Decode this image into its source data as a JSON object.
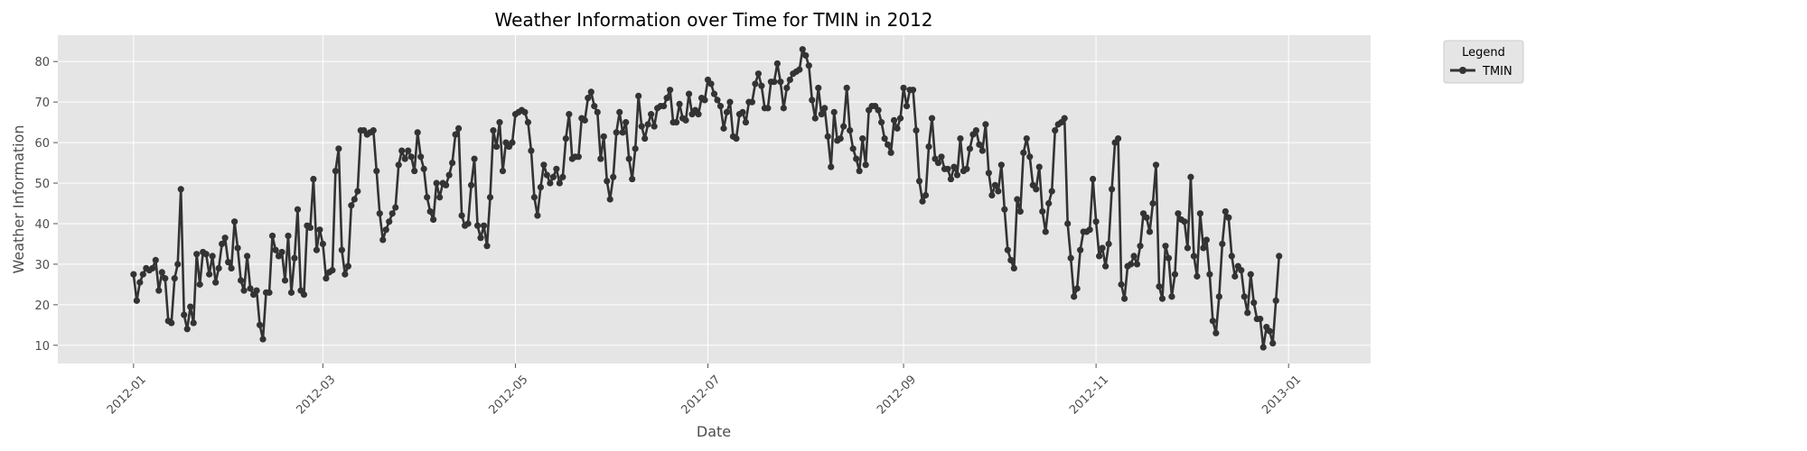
{
  "chart_data": {
    "type": "line",
    "title": "Weather Information over Time for TMIN in 2012",
    "xlabel": "Date",
    "ylabel": "Weather Information",
    "xlim": [
      "2011-12-08",
      "2013-01-27"
    ],
    "ylim": [
      5.5,
      86.5
    ],
    "grid": true,
    "legend": {
      "title": "Legend",
      "placement": "outside-top-right"
    },
    "x_ticks": [
      "2012-01",
      "2012-03",
      "2012-05",
      "2012-07",
      "2012-09",
      "2012-11",
      "2013-01"
    ],
    "y_ticks": [
      10,
      20,
      30,
      40,
      50,
      60,
      70,
      80
    ],
    "colors": {
      "line": "#333333",
      "plot_background": "#e5e5e5",
      "grid": "#ffffff",
      "text": "#4d4d4d"
    },
    "series": [
      {
        "name": "TMIN",
        "start_date": "2012-01-01",
        "interval_days": 1,
        "values": [
          27.5,
          21,
          25.5,
          27.5,
          29,
          28.5,
          29,
          31,
          23.5,
          28,
          26.5,
          16,
          15.5,
          26.5,
          30,
          48.5,
          17.5,
          14,
          19.5,
          15.5,
          32.5,
          25,
          33,
          32.5,
          27.5,
          32,
          25.5,
          29,
          35,
          36.5,
          30.5,
          29,
          40.5,
          34,
          26,
          23.5,
          32,
          24,
          22.5,
          23.5,
          15,
          11.5,
          23,
          23,
          37,
          33.5,
          32,
          33,
          26,
          37,
          23,
          31.5,
          43.5,
          23.5,
          22.5,
          39.5,
          39,
          51,
          33.5,
          38.5,
          35,
          26.5,
          28,
          28.5,
          53,
          58.5,
          33.5,
          27.5,
          29.5,
          44.5,
          46,
          48,
          63,
          63,
          62,
          62.5,
          63,
          53,
          42.5,
          36,
          38.5,
          40.5,
          42.5,
          44,
          54.5,
          58,
          56,
          58,
          56.5,
          53,
          62.5,
          56.5,
          53.5,
          46.5,
          43,
          41,
          50,
          46.5,
          50,
          49.5,
          52,
          55,
          62,
          63.5,
          42,
          39.5,
          40,
          49.5,
          56,
          39.5,
          36.5,
          39.5,
          34.5,
          46.5,
          63,
          59,
          65,
          53,
          60,
          59,
          60,
          67,
          67.5,
          68,
          67.5,
          65,
          58,
          46.5,
          42,
          49,
          54.5,
          52,
          50,
          51.5,
          53.5,
          50,
          51.5,
          61,
          67,
          56,
          56.5,
          56.5,
          66,
          65.5,
          71,
          72.5,
          69,
          67.5,
          56,
          61.5,
          50.5,
          46,
          51.5,
          62.5,
          67.5,
          62.5,
          65,
          56,
          51,
          58.5,
          71.5,
          64,
          61,
          64.5,
          67,
          64,
          68.5,
          69,
          69,
          71,
          73,
          65,
          65,
          69.5,
          66,
          65.5,
          72,
          67,
          68,
          67,
          71,
          70.5,
          75.5,
          74.5,
          72,
          70.5,
          69,
          63.5,
          67.5,
          70,
          61.5,
          61,
          67,
          67.5,
          65,
          70,
          70,
          74.5,
          77,
          74,
          68.5,
          68.5,
          75,
          75,
          79.5,
          75,
          68.5,
          73.5,
          75.5,
          77,
          77.5,
          78,
          83,
          81.5,
          79,
          70.5,
          66,
          73.5,
          67,
          68.5,
          61.5,
          54,
          67.5,
          60.5,
          61,
          64,
          73.5,
          63,
          58.5,
          56,
          53,
          61,
          54.5,
          68,
          69,
          69,
          68,
          65,
          61,
          59.5,
          57.5,
          65.5,
          63.5,
          66,
          73.5,
          69,
          73,
          73,
          63,
          50.5,
          45.5,
          47,
          59,
          66,
          56,
          55,
          56.5,
          53.5,
          53.5,
          51,
          54,
          52,
          61,
          53,
          53.5,
          58.5,
          62,
          63,
          59.5,
          58,
          64.5,
          52.5,
          47,
          49.5,
          48,
          54.5,
          43.5,
          33.5,
          31,
          29,
          46,
          43,
          57.5,
          61,
          56.5,
          49.5,
          48.5,
          54,
          43,
          38,
          45,
          48,
          63,
          64.5,
          65,
          66,
          40,
          31.5,
          22,
          24,
          33.5,
          38,
          38,
          38.5,
          51,
          40.5,
          32,
          34,
          29.5,
          35,
          48.5,
          60,
          61,
          25,
          21.5,
          29.5,
          30,
          32,
          30,
          34.5,
          42.5,
          41.5,
          38,
          45,
          54.5,
          24.5,
          21.5,
          34.5,
          31.5,
          22,
          27.5,
          42.5,
          41,
          40.5,
          34,
          51.5,
          32,
          27,
          42.5,
          34,
          36,
          27.5,
          16,
          13,
          22,
          35,
          43,
          41.5,
          32,
          27,
          29.5,
          28.5,
          22,
          18,
          27.5,
          20.5,
          16.5,
          16.5,
          9.5,
          14.5,
          13.5,
          10.5,
          21,
          32
        ]
      }
    ]
  }
}
